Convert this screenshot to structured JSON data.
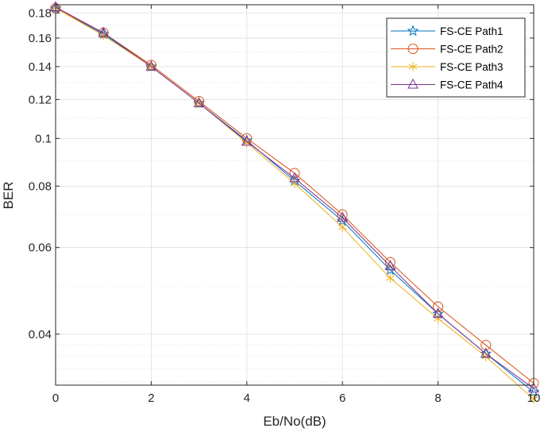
{
  "chart_data": {
    "type": "line",
    "xlabel": "Eb/No(dB)",
    "ylabel": "BER",
    "yscale": "log",
    "xlim": [
      0,
      10
    ],
    "ylim": [
      0.0315,
      0.187
    ],
    "grid": true,
    "legend_position": "top-right",
    "x": [
      0,
      1,
      2,
      3,
      4,
      5,
      6,
      7,
      8,
      9,
      10
    ],
    "x_ticks": [
      "0",
      "2",
      "4",
      "6",
      "8",
      "10"
    ],
    "y_ticks": [
      "0.04",
      "0.06",
      "0.08",
      "0.1",
      "0.12",
      "0.14",
      "0.16",
      "0.18"
    ],
    "series": [
      {
        "name": "FS-CE Path1",
        "marker": "pentagram",
        "color": "#0072BD",
        "values": [
          0.184,
          0.163,
          0.14,
          0.118,
          0.099,
          0.082,
          0.068,
          0.054,
          0.044,
          0.0365,
          0.0305
        ]
      },
      {
        "name": "FS-CE Path2",
        "marker": "circle",
        "color": "#D95319",
        "values": [
          0.184,
          0.164,
          0.141,
          0.119,
          0.1,
          0.085,
          0.07,
          0.056,
          0.0455,
          0.038,
          0.0318
        ]
      },
      {
        "name": "FS-CE Path3",
        "marker": "asterisk",
        "color": "#EDB120",
        "values": [
          0.184,
          0.162,
          0.14,
          0.118,
          0.098,
          0.081,
          0.066,
          0.052,
          0.043,
          0.036,
          0.0295
        ]
      },
      {
        "name": "FS-CE Path4",
        "marker": "triangle",
        "color": "#7E2F8E",
        "values": [
          0.185,
          0.164,
          0.14,
          0.118,
          0.0985,
          0.083,
          0.069,
          0.055,
          0.044,
          0.0365,
          0.031
        ]
      }
    ]
  }
}
